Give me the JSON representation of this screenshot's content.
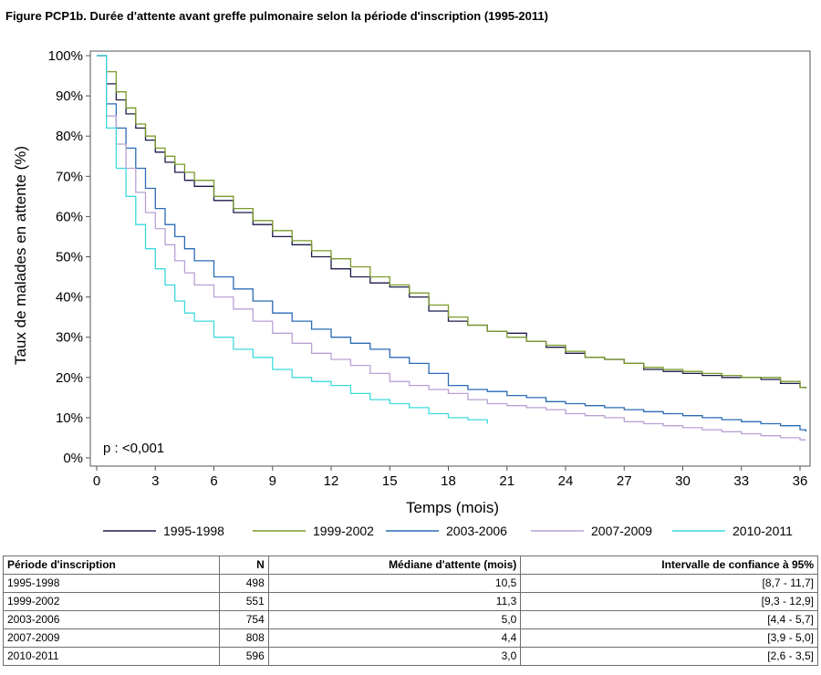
{
  "figure_title": "Figure PCP1b. Durée d'attente avant greffe pulmonaire selon la période d'inscription (1995-2011)",
  "chart_data": {
    "type": "line",
    "title": "",
    "xlabel": "Temps (mois)",
    "ylabel": "Taux de malades en attente (%)",
    "xlim": [
      0,
      36.5
    ],
    "ylim": [
      0,
      100
    ],
    "x_ticks": [
      0,
      3,
      6,
      9,
      12,
      15,
      18,
      21,
      24,
      27,
      30,
      33,
      36
    ],
    "y_ticks": [
      0,
      10,
      20,
      30,
      40,
      50,
      60,
      70,
      80,
      90,
      100
    ],
    "y_tick_labels": [
      "0%",
      "10%",
      "20%",
      "30%",
      "40%",
      "50%",
      "60%",
      "70%",
      "80%",
      "90%",
      "100%"
    ],
    "grid": false,
    "legend_position": "bottom",
    "annotation": "p : <0,001",
    "series": [
      {
        "name": "1995-1998",
        "color": "#1b1b4a",
        "x": [
          0,
          0.5,
          1,
          1.5,
          2,
          2.5,
          3,
          3.5,
          4,
          4.5,
          5,
          6,
          7,
          8,
          9,
          10,
          11,
          12,
          13,
          14,
          15,
          16,
          17,
          18,
          19,
          20,
          21,
          22,
          23,
          24,
          25,
          26,
          27,
          28,
          29,
          30,
          31,
          32,
          33,
          34,
          35,
          36,
          36.3
        ],
        "y": [
          100,
          93,
          89,
          85.5,
          82,
          79,
          76,
          73.5,
          71,
          69,
          67.5,
          64,
          61,
          58,
          55,
          53,
          50,
          47,
          45,
          43.5,
          42.5,
          40,
          36.5,
          34,
          33,
          31.5,
          31,
          29,
          27.5,
          26,
          25,
          24.5,
          23.5,
          22,
          21.5,
          21,
          20.5,
          20,
          20,
          19.5,
          18.5,
          17.5,
          17.3
        ]
      },
      {
        "name": "1999-2002",
        "color": "#7a9a2a",
        "x": [
          0,
          0.5,
          1,
          1.5,
          2,
          2.5,
          3,
          3.5,
          4,
          4.5,
          5,
          6,
          7,
          8,
          9,
          10,
          11,
          12,
          13,
          14,
          15,
          16,
          17,
          18,
          19,
          20,
          21,
          22,
          23,
          24,
          25,
          26,
          27,
          28,
          29,
          30,
          31,
          32,
          33,
          34,
          35,
          36,
          36.3
        ],
        "y": [
          100,
          96,
          91,
          87,
          83,
          80,
          77,
          75,
          73,
          71,
          69,
          65,
          62,
          59,
          56.5,
          54,
          51.5,
          49.5,
          47.5,
          45,
          43,
          41,
          38,
          35,
          33,
          31.5,
          30,
          29,
          28,
          26.5,
          25,
          24.5,
          23.5,
          22.5,
          22,
          21.5,
          21,
          20.5,
          20,
          20,
          19,
          17.5,
          17.3
        ]
      },
      {
        "name": "2003-2006",
        "color": "#2a6bb5",
        "x": [
          0,
          0.5,
          1,
          1.5,
          2,
          2.5,
          3,
          3.5,
          4,
          4.5,
          5,
          6,
          7,
          8,
          9,
          10,
          11,
          12,
          13,
          14,
          15,
          16,
          17,
          18,
          19,
          20,
          21,
          22,
          23,
          24,
          25,
          26,
          27,
          28,
          29,
          30,
          31,
          32,
          33,
          34,
          35,
          36,
          36.3
        ],
        "y": [
          100,
          88,
          82,
          77,
          72,
          67,
          62,
          58,
          55,
          52,
          49,
          45,
          42,
          39,
          36,
          34,
          32,
          30,
          28.5,
          27,
          25,
          23.5,
          21,
          18,
          17,
          16.5,
          15.5,
          15,
          14,
          13.5,
          13,
          12.5,
          12,
          11.5,
          11,
          10.5,
          10,
          9.5,
          9,
          8.5,
          8,
          7,
          6.5
        ]
      },
      {
        "name": "2007-2009",
        "color": "#b9a1d4",
        "x": [
          0,
          0.5,
          1,
          1.5,
          2,
          2.5,
          3,
          3.5,
          4,
          4.5,
          5,
          6,
          7,
          8,
          9,
          10,
          11,
          12,
          13,
          14,
          15,
          16,
          17,
          18,
          19,
          20,
          21,
          22,
          23,
          24,
          25,
          26,
          27,
          28,
          29,
          30,
          31,
          32,
          33,
          34,
          35,
          36,
          36.3
        ],
        "y": [
          100,
          85,
          78,
          72,
          66,
          61,
          57,
          53,
          49,
          46,
          43,
          40,
          37,
          34,
          31,
          28.5,
          26,
          24.5,
          23,
          21,
          19,
          18,
          17,
          16,
          14.5,
          13.5,
          13,
          12.5,
          12,
          11,
          10.5,
          10,
          9,
          8.5,
          8,
          7.5,
          7,
          6.5,
          6,
          5.5,
          5,
          4.5,
          4.5
        ]
      },
      {
        "name": "2010-2011",
        "color": "#3fd9db",
        "x": [
          0,
          0.5,
          1,
          1.5,
          2,
          2.5,
          3,
          3.5,
          4,
          4.5,
          5,
          6,
          7,
          8,
          9,
          10,
          11,
          12,
          13,
          14,
          15,
          16,
          17,
          18,
          19,
          20
        ],
        "y": [
          100,
          82,
          72,
          65,
          58,
          52,
          47,
          43,
          39,
          36,
          34,
          30,
          27,
          25,
          22,
          20,
          19,
          18,
          16,
          14.5,
          13.5,
          12.5,
          11,
          10,
          9.5,
          8.5
        ]
      }
    ]
  },
  "table": {
    "headers": [
      "Période d'inscription",
      "N",
      "Médiane d'attente (mois)",
      "Intervalle de confiance à 95%"
    ],
    "rows": [
      [
        "1995-1998",
        "498",
        "10,5",
        "[8,7 - 11,7]"
      ],
      [
        "1999-2002",
        "551",
        "11,3",
        "[9,3 - 12,9]"
      ],
      [
        "2003-2006",
        "754",
        "5,0",
        "[4,4 - 5,7]"
      ],
      [
        "2007-2009",
        "808",
        "4,4",
        "[3,9 - 5,0]"
      ],
      [
        "2010-2011",
        "596",
        "3,0",
        "[2,6 - 3,5]"
      ]
    ]
  }
}
